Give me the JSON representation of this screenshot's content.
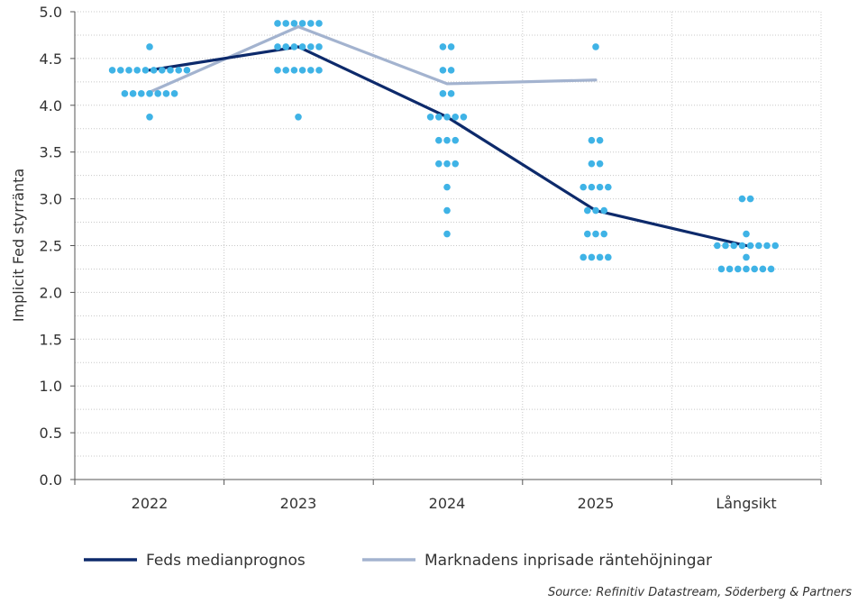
{
  "chart_data": {
    "type": "line",
    "ylabel": "Implicit Fed styrränta",
    "xlabel": "",
    "categories": [
      "2022",
      "2023",
      "2024",
      "2025",
      "Långsikt"
    ],
    "ylim": [
      0,
      5
    ],
    "yticks": [
      "0.0",
      "0.5",
      "1.0",
      "1.5",
      "2.0",
      "2.5",
      "3.0",
      "3.5",
      "4.0",
      "4.5",
      "5.0"
    ],
    "grid": true,
    "series": [
      {
        "name": "Feds medianprognos",
        "color": "#0d2a6b",
        "values": [
          4.375,
          4.625,
          3.875,
          2.875,
          2.5
        ]
      },
      {
        "name": "Marknadens inprisade räntehöjningar",
        "color": "#a3b3cf",
        "values": [
          4.14,
          4.84,
          4.23,
          4.27,
          null
        ]
      }
    ],
    "dots": {
      "name": "FOMC dot plot",
      "color": "#3fb3e6",
      "points": [
        {
          "category": "2022",
          "value": 4.625,
          "count": 1
        },
        {
          "category": "2022",
          "value": 4.375,
          "count": 10
        },
        {
          "category": "2022",
          "value": 4.125,
          "count": 7
        },
        {
          "category": "2022",
          "value": 3.875,
          "count": 1
        },
        {
          "category": "2023",
          "value": 4.875,
          "count": 6
        },
        {
          "category": "2023",
          "value": 4.625,
          "count": 6
        },
        {
          "category": "2023",
          "value": 4.375,
          "count": 6
        },
        {
          "category": "2023",
          "value": 3.875,
          "count": 1
        },
        {
          "category": "2024",
          "value": 4.625,
          "count": 2
        },
        {
          "category": "2024",
          "value": 4.375,
          "count": 2
        },
        {
          "category": "2024",
          "value": 4.125,
          "count": 2
        },
        {
          "category": "2024",
          "value": 3.875,
          "count": 5
        },
        {
          "category": "2024",
          "value": 3.625,
          "count": 3
        },
        {
          "category": "2024",
          "value": 3.375,
          "count": 3
        },
        {
          "category": "2024",
          "value": 3.125,
          "count": 1
        },
        {
          "category": "2024",
          "value": 2.875,
          "count": 1
        },
        {
          "category": "2024",
          "value": 2.625,
          "count": 1
        },
        {
          "category": "2025",
          "value": 4.625,
          "count": 1
        },
        {
          "category": "2025",
          "value": 3.625,
          "count": 2
        },
        {
          "category": "2025",
          "value": 3.375,
          "count": 2
        },
        {
          "category": "2025",
          "value": 3.125,
          "count": 4
        },
        {
          "category": "2025",
          "value": 2.875,
          "count": 3
        },
        {
          "category": "2025",
          "value": 2.625,
          "count": 3
        },
        {
          "category": "2025",
          "value": 2.375,
          "count": 4
        },
        {
          "category": "Långsikt",
          "value": 3.0,
          "count": 2
        },
        {
          "category": "Långsikt",
          "value": 2.625,
          "count": 1
        },
        {
          "category": "Långsikt",
          "value": 2.5,
          "count": 8
        },
        {
          "category": "Långsikt",
          "value": 2.375,
          "count": 1
        },
        {
          "category": "Långsikt",
          "value": 2.25,
          "count": 7
        }
      ]
    },
    "legend_position": "bottom"
  },
  "source": "Source: Refinitiv Datastream, Söderberg & Partners"
}
